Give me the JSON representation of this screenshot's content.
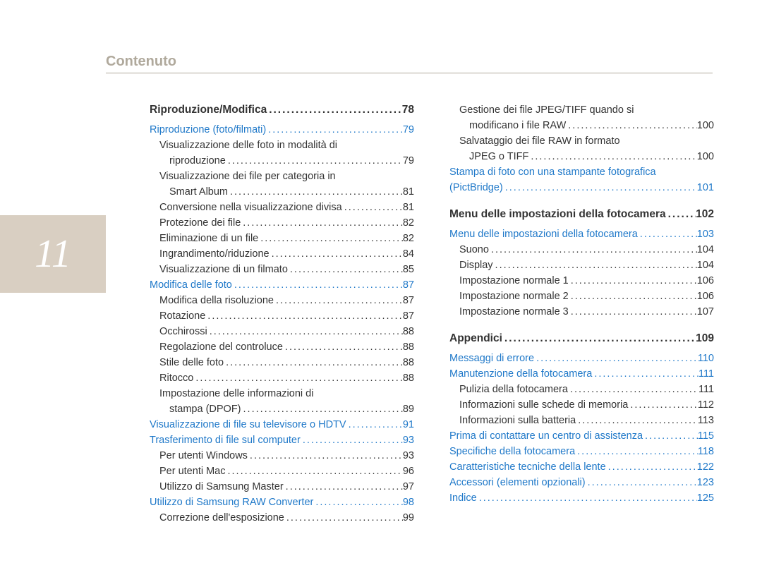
{
  "page_number": "11",
  "header": "Contenuto",
  "colors": {
    "tab_bg": "#d9cfc2",
    "tab_fg": "#ffffff",
    "header_fg": "#b0a99c",
    "link": "#2079c9",
    "text": "#333333"
  },
  "col1": [
    {
      "type": "chapter",
      "cls": "toc-first",
      "label": "Riproduzione/Modifica",
      "page": "78"
    },
    {
      "type": "section",
      "label": "Riproduzione (foto/filmati)",
      "page": "79"
    },
    {
      "type": "sub-multi",
      "label": "Visualizzazione delle foto in modalità di",
      "label2": "riproduzione",
      "page": "79"
    },
    {
      "type": "sub-multi",
      "label": "Visualizzazione dei file per categoria in",
      "label2": "Smart Album",
      "page": "81"
    },
    {
      "type": "sub",
      "label": "Conversione nella visualizzazione divisa",
      "page": "81"
    },
    {
      "type": "sub",
      "label": "Protezione dei file",
      "page": "82"
    },
    {
      "type": "sub",
      "label": "Eliminazione di un file",
      "page": "82"
    },
    {
      "type": "sub",
      "label": "Ingrandimento/riduzione",
      "page": "84"
    },
    {
      "type": "sub",
      "label": "Visualizzazione di un filmato",
      "page": "85"
    },
    {
      "type": "section",
      "label": "Modifica delle foto",
      "page": "87"
    },
    {
      "type": "sub",
      "label": "Modifica della risoluzione",
      "page": "87"
    },
    {
      "type": "sub",
      "label": "Rotazione",
      "page": "87"
    },
    {
      "type": "sub",
      "label": "Occhirossi",
      "page": "88"
    },
    {
      "type": "sub",
      "label": "Regolazione del controluce",
      "page": "88"
    },
    {
      "type": "sub",
      "label": "Stile delle foto",
      "page": "88"
    },
    {
      "type": "sub",
      "label": "Ritocco",
      "page": "88"
    },
    {
      "type": "sub-multi",
      "label": "Impostazione delle informazioni di",
      "label2": "stampa (DPOF)",
      "page": "89"
    },
    {
      "type": "section",
      "label": "Visualizzazione di file su televisore o HDTV",
      "page": "91"
    },
    {
      "type": "section",
      "label": "Trasferimento di file sul computer",
      "page": "93"
    },
    {
      "type": "sub",
      "label": "Per utenti Windows",
      "page": "93"
    },
    {
      "type": "sub",
      "label": "Per utenti Mac",
      "page": "96"
    },
    {
      "type": "sub",
      "label": "Utilizzo di Samsung Master",
      "page": "97"
    },
    {
      "type": "section",
      "label": "Utilizzo di Samsung RAW Converter",
      "page": "98"
    },
    {
      "type": "sub",
      "label": "Correzione dell'esposizione",
      "page": "99"
    }
  ],
  "col2": [
    {
      "type": "sub-multi-first",
      "label": "Gestione dei file JPEG/TIFF quando si",
      "label2": "modificano i file RAW",
      "page": "100"
    },
    {
      "type": "sub-multi",
      "label": "Salvataggio dei file RAW in formato",
      "label2": "JPEG o TIFF",
      "page": "100"
    },
    {
      "type": "section-multi",
      "label": "Stampa di foto con una stampante fotografica",
      "label2": "(PictBridge)",
      "page": "101"
    },
    {
      "type": "chapter",
      "label": "Menu delle impostazioni della fotocamera",
      "page": "102"
    },
    {
      "type": "section",
      "label": "Menu delle impostazioni della fotocamera",
      "page": "103"
    },
    {
      "type": "sub",
      "label": "Suono",
      "page": "104"
    },
    {
      "type": "sub",
      "label": "Display",
      "page": "104"
    },
    {
      "type": "sub",
      "label": "Impostazione normale 1",
      "page": "106"
    },
    {
      "type": "sub",
      "label": "Impostazione normale 2",
      "page": "106"
    },
    {
      "type": "sub",
      "label": "Impostazione normale 3",
      "page": "107"
    },
    {
      "type": "chapter",
      "label": "Appendici",
      "page": "109"
    },
    {
      "type": "section",
      "label": "Messaggi di errore",
      "page": "110"
    },
    {
      "type": "section",
      "label": "Manutenzione della fotocamera",
      "page": "111"
    },
    {
      "type": "sub",
      "label": "Pulizia della fotocamera",
      "page": "111"
    },
    {
      "type": "sub",
      "label": "Informazioni sulle schede di memoria",
      "page": "112"
    },
    {
      "type": "sub",
      "label": "Informazioni sulla batteria",
      "page": "113"
    },
    {
      "type": "section",
      "label": "Prima di contattare un centro di assistenza",
      "page": "115"
    },
    {
      "type": "section",
      "label": "Specifiche della fotocamera",
      "page": "118"
    },
    {
      "type": "section",
      "label": "Caratteristiche tecniche della lente",
      "page": "122"
    },
    {
      "type": "section",
      "label": "Accessori (elementi opzionali)",
      "page": "123"
    },
    {
      "type": "section",
      "label": "Indice",
      "page": "125"
    }
  ]
}
